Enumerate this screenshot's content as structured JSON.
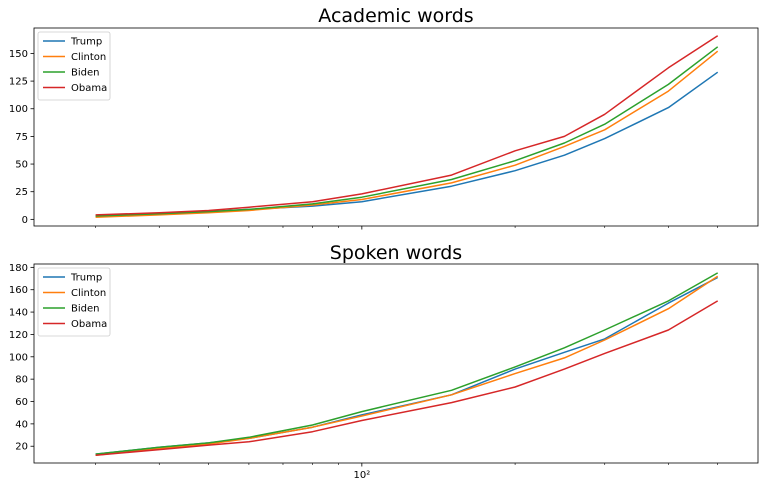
{
  "chart_data": [
    {
      "type": "line",
      "title": "Academic words",
      "xlabel": "",
      "ylabel": "",
      "xscale": "log",
      "x_tick_labels": [],
      "yticks": [
        0,
        25,
        50,
        75,
        100,
        125,
        150
      ],
      "ylim": [
        -6,
        173
      ],
      "legend_position": "upper-left",
      "x": [
        30,
        40,
        50,
        60,
        80,
        100,
        150,
        200,
        250,
        300,
        400,
        500
      ],
      "series": [
        {
          "name": "Trump",
          "color": "#1f77b4",
          "values": [
            3,
            5,
            7,
            9,
            12,
            16,
            30,
            44,
            58,
            73,
            101,
            133
          ]
        },
        {
          "name": "Clinton",
          "color": "#ff7f0e",
          "values": [
            2,
            4,
            6,
            8,
            13,
            18,
            33,
            49,
            66,
            81,
            116,
            152
          ]
        },
        {
          "name": "Biden",
          "color": "#2ca02c",
          "values": [
            3,
            5,
            7,
            9,
            14,
            20,
            36,
            53,
            69,
            86,
            122,
            156
          ]
        },
        {
          "name": "Obama",
          "color": "#d62728",
          "values": [
            4,
            6,
            8,
            11,
            16,
            23,
            40,
            62,
            75,
            95,
            137,
            166
          ]
        }
      ]
    },
    {
      "type": "line",
      "title": "Spoken words",
      "xlabel": "",
      "ylabel": "",
      "xscale": "log",
      "x_tick_labels": [
        "10²"
      ],
      "yticks": [
        20,
        40,
        60,
        80,
        100,
        120,
        140,
        160,
        180
      ],
      "ylim": [
        5,
        183
      ],
      "legend_position": "upper-left",
      "x": [
        30,
        40,
        50,
        60,
        80,
        100,
        150,
        200,
        250,
        300,
        400,
        500
      ],
      "series": [
        {
          "name": "Trump",
          "color": "#1f77b4",
          "values": [
            13,
            19,
            23,
            27,
            37,
            48,
            66,
            89,
            104,
            116,
            148,
            171
          ]
        },
        {
          "name": "Clinton",
          "color": "#ff7f0e",
          "values": [
            12,
            18,
            22,
            27,
            37,
            47,
            66,
            85,
            99,
            115,
            143,
            172
          ]
        },
        {
          "name": "Biden",
          "color": "#2ca02c",
          "values": [
            13,
            19,
            23,
            28,
            39,
            51,
            70,
            91,
            108,
            124,
            150,
            175
          ]
        },
        {
          "name": "Obama",
          "color": "#d62728",
          "values": [
            12,
            17,
            21,
            24,
            33,
            43,
            59,
            73,
            89,
            103,
            124,
            150
          ]
        }
      ]
    }
  ]
}
